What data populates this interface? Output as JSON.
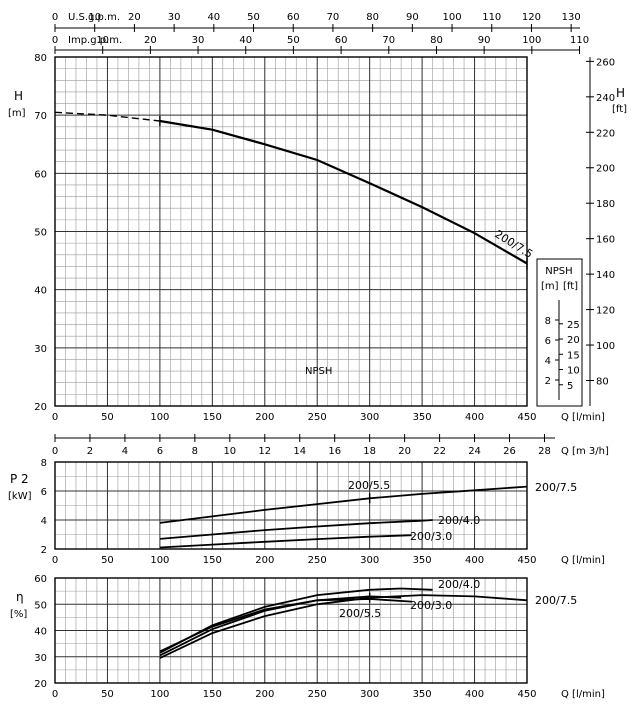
{
  "chart_data": [
    {
      "type": "line",
      "name_key": "head",
      "ylabel": "H",
      "ylabel_unit": "[m]",
      "ylim": [
        20,
        80
      ],
      "yticks": [
        20,
        30,
        40,
        50,
        60,
        70,
        80
      ],
      "xlim": [
        0,
        450
      ],
      "xticks": [
        0,
        50,
        100,
        150,
        200,
        250,
        300,
        350,
        400,
        450
      ],
      "xlabel": "Q [l/min]",
      "right_axis": {
        "label": "H",
        "unit": "[ft]",
        "ticks": [
          80,
          100,
          120,
          140,
          160,
          180,
          200,
          220,
          240,
          260
        ]
      },
      "top_axis_us": {
        "label": "U.S.g.p.m.",
        "ticks": [
          0,
          10,
          20,
          30,
          40,
          50,
          60,
          70,
          80,
          90,
          100,
          110,
          120,
          130
        ]
      },
      "top_axis_imp": {
        "label": "Imp.g.p.m.",
        "ticks": [
          0,
          10,
          20,
          30,
          40,
          50,
          60,
          70,
          80,
          90,
          100,
          110
        ]
      },
      "bottom_axis_m3h": {
        "label": "Q [m 3/h]",
        "ticks": [
          0,
          2,
          4,
          6,
          8,
          10,
          12,
          14,
          16,
          18,
          20,
          22,
          24,
          26,
          28
        ]
      },
      "npsh_text": "NPSH",
      "npsh_box": {
        "title": "NPSH",
        "unit_m": "[m]",
        "unit_ft": "[ft]",
        "m_ticks": [
          2,
          4,
          6,
          8
        ],
        "ft_ticks": [
          5,
          10,
          15,
          20,
          25
        ]
      },
      "series": [
        {
          "name": "200/7.5",
          "dashed_until_x": 100,
          "points": [
            [
              0,
              70.5
            ],
            [
              50,
              70.0
            ],
            [
              100,
              69.0
            ],
            [
              150,
              67.5
            ],
            [
              200,
              65.0
            ],
            [
              250,
              62.3
            ],
            [
              300,
              58.3
            ],
            [
              350,
              54.2
            ],
            [
              400,
              49.7
            ],
            [
              450,
              44.5
            ]
          ]
        }
      ]
    },
    {
      "type": "line",
      "name_key": "power",
      "ylabel": "P 2",
      "ylabel_unit": "[kW]",
      "ylim": [
        2,
        8
      ],
      "yticks": [
        2,
        4,
        6,
        8
      ],
      "xlim": [
        0,
        450
      ],
      "xticks": [
        0,
        50,
        100,
        150,
        200,
        250,
        300,
        350,
        400,
        450
      ],
      "xlabel": "Q [l/min]",
      "series": [
        {
          "name": "200/7.5",
          "points": [
            [
              100,
              3.8
            ],
            [
              150,
              4.25
            ],
            [
              200,
              4.7
            ],
            [
              250,
              5.1
            ],
            [
              300,
              5.5
            ],
            [
              350,
              5.8
            ],
            [
              400,
              6.05
            ],
            [
              450,
              6.3
            ]
          ]
        },
        {
          "name": "200/5.5",
          "points": []
        },
        {
          "name": "200/4.0",
          "points": [
            [
              100,
              2.7
            ],
            [
              150,
              3.0
            ],
            [
              200,
              3.3
            ],
            [
              250,
              3.55
            ],
            [
              300,
              3.78
            ],
            [
              350,
              3.95
            ],
            [
              360,
              4.0
            ]
          ]
        },
        {
          "name": "200/3.0",
          "points": [
            [
              100,
              2.1
            ],
            [
              150,
              2.3
            ],
            [
              200,
              2.5
            ],
            [
              250,
              2.68
            ],
            [
              300,
              2.85
            ],
            [
              340,
              2.95
            ]
          ]
        }
      ]
    },
    {
      "type": "line",
      "name_key": "efficiency",
      "ylabel": "η",
      "ylabel_unit": "[%]",
      "ylim": [
        20,
        60
      ],
      "yticks": [
        20,
        30,
        40,
        50,
        60
      ],
      "xlim": [
        0,
        450
      ],
      "xticks": [
        0,
        50,
        100,
        150,
        200,
        250,
        300,
        350,
        400,
        450
      ],
      "xlabel": "Q [l/min]",
      "series": [
        {
          "name": "200/7.5",
          "points": [
            [
              100,
              29.5
            ],
            [
              150,
              39.0
            ],
            [
              200,
              45.5
            ],
            [
              250,
              50.0
            ],
            [
              300,
              52.5
            ],
            [
              350,
              53.5
            ],
            [
              400,
              53.0
            ],
            [
              450,
              51.5
            ]
          ]
        },
        {
          "name": "200/4.0",
          "points": [
            [
              100,
              31.5
            ],
            [
              150,
              42.0
            ],
            [
              200,
              49.0
            ],
            [
              250,
              53.5
            ],
            [
              300,
              55.5
            ],
            [
              330,
              56.0
            ],
            [
              360,
              55.5
            ]
          ]
        },
        {
          "name": "200/5.5",
          "points": [
            [
              100,
              30.5
            ],
            [
              150,
              40.5
            ],
            [
              200,
              47.5
            ],
            [
              250,
              51.5
            ],
            [
              300,
              53.0
            ],
            [
              330,
              52.5
            ]
          ]
        },
        {
          "name": "200/3.0",
          "points": [
            [
              100,
              32.0
            ],
            [
              150,
              41.5
            ],
            [
              200,
              48.0
            ],
            [
              250,
              51.5
            ],
            [
              300,
              52.0
            ],
            [
              340,
              51.0
            ]
          ]
        }
      ]
    }
  ]
}
